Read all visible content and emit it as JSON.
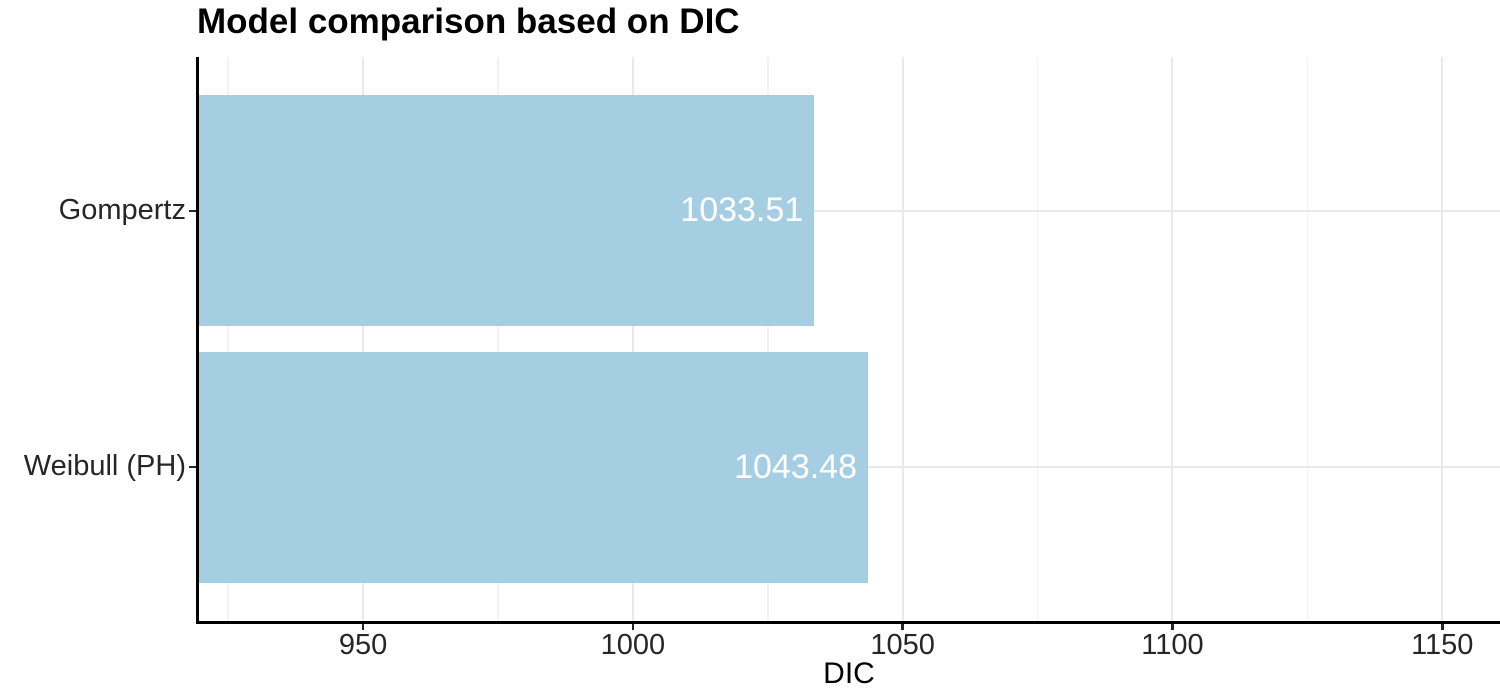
{
  "chart_data": {
    "type": "bar",
    "orientation": "horizontal",
    "title": "Model comparison based on DIC",
    "xlabel": "DIC",
    "ylabel": "",
    "categories": [
      "Gompertz",
      "Weibull (PH)"
    ],
    "values": [
      1033.51,
      1043.48
    ],
    "value_labels": [
      "1033.51",
      "1043.48"
    ],
    "x_axis": {
      "min": 919.4,
      "max": 1160.7,
      "major_ticks": [
        950,
        1000,
        1050,
        1100,
        1150
      ],
      "minor_ticks": [
        925,
        975,
        1025,
        1075,
        1125
      ]
    },
    "grid": "major and minor vertical, major horizontal",
    "legend_position": "none"
  },
  "colors": {
    "bar_fill": "#a6cee3",
    "value_label": "#ffffff",
    "major_grid": "#e9e9e9",
    "minor_grid": "#f3f3f3",
    "axis_line": "#000000",
    "axis_text": "#262626",
    "title_text": "#000000",
    "background": "#ffffff"
  }
}
